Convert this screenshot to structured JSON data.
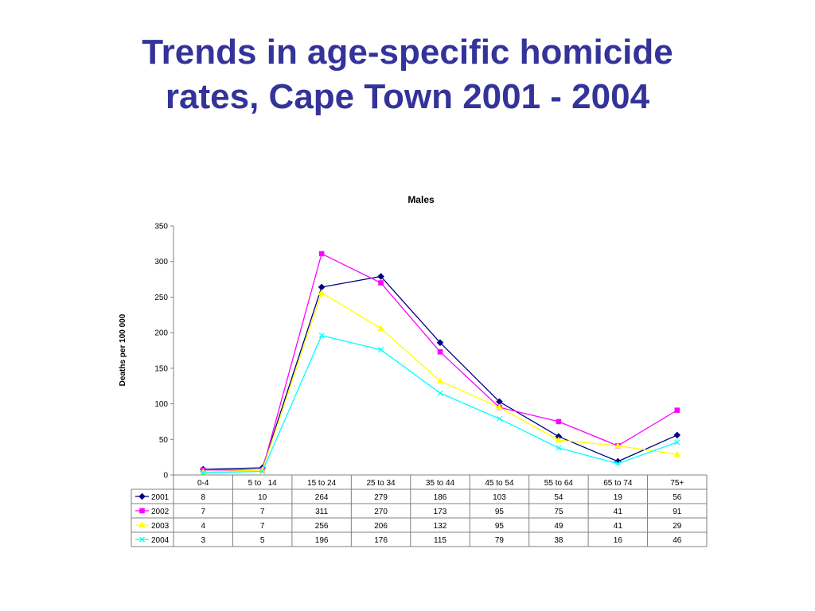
{
  "slide": {
    "title_line1": "Trends in age-specific homicide",
    "title_line2": "rates, Cape Town 2001 - 2004",
    "title_color": "#333399"
  },
  "chart_data": {
    "type": "line",
    "title": "Males",
    "xlabel": "",
    "ylabel": "Deaths per 100 000",
    "ylim": [
      0,
      350
    ],
    "yticks": [
      0,
      50,
      100,
      150,
      200,
      250,
      300,
      350
    ],
    "grid": false,
    "legend": "data-table",
    "categories": [
      "0-4",
      "5 to   14",
      "15 to 24",
      "25 to 34",
      "35 to 44",
      "45 to 54",
      "55 to 64",
      "65 to 74",
      "75+"
    ],
    "series": [
      {
        "name": "2001",
        "values": [
          8,
          10,
          264,
          279,
          186,
          103,
          54,
          19,
          56
        ],
        "color": "#000080",
        "marker": "diamond"
      },
      {
        "name": "2002",
        "values": [
          7,
          7,
          311,
          270,
          173,
          95,
          75,
          41,
          91
        ],
        "color": "#ff00ff",
        "marker": "square"
      },
      {
        "name": "2003",
        "values": [
          4,
          7,
          256,
          206,
          132,
          95,
          49,
          41,
          29
        ],
        "color": "#ffff00",
        "marker": "triangle"
      },
      {
        "name": "2004",
        "values": [
          3,
          5,
          196,
          176,
          115,
          79,
          38,
          16,
          46
        ],
        "color": "#00ffff",
        "marker": "x"
      }
    ]
  }
}
